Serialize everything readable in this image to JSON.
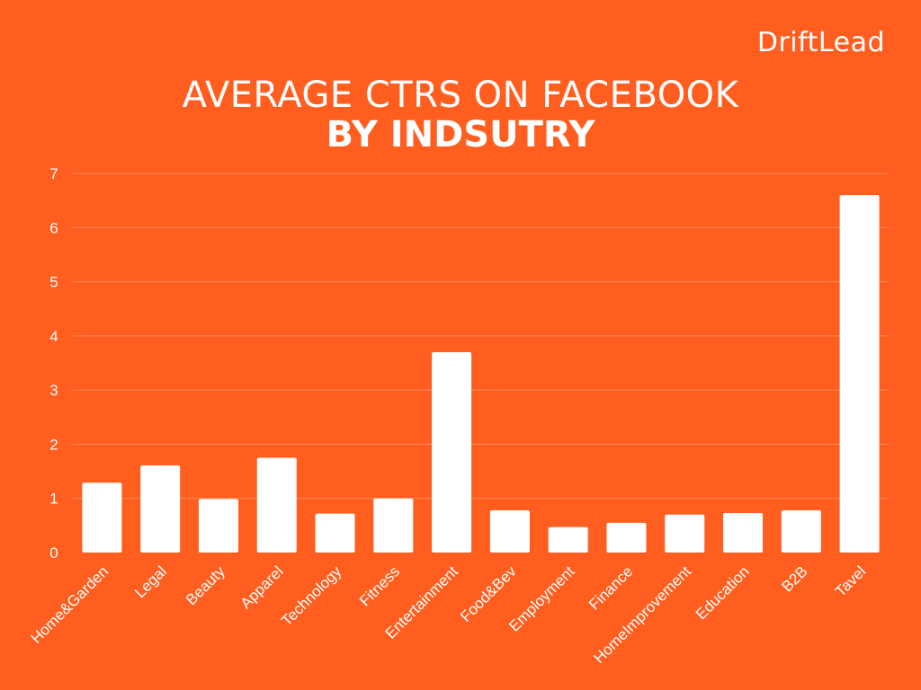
{
  "brand": {
    "name": "DriftLead"
  },
  "title": {
    "line1": "AVERAGE CTRS ON FACEBOOK",
    "line2": "BY INDSUTRY"
  },
  "colors": {
    "background": "#FF5E1F",
    "bar": "#FFFFFF",
    "gridline": "#FF8A5C",
    "text": "#FFFFFF"
  },
  "chart_data": {
    "type": "bar",
    "title": "AVERAGE CTRS ON FACEBOOK BY INDSUTRY",
    "xlabel": "",
    "ylabel": "",
    "ylim": [
      0,
      7
    ],
    "yticks": [
      0,
      1,
      2,
      3,
      4,
      5,
      6,
      7
    ],
    "grid": true,
    "categories": [
      "Home&Garden",
      "Legal",
      "Beauty",
      "Apparel",
      "Technology",
      "Fitness",
      "Entertainment",
      "Food&Bev",
      "Employment",
      "Finance",
      "HomeImprovement",
      "Education",
      "B2B",
      "Tavel"
    ],
    "values": [
      1.29,
      1.61,
      0.99,
      1.75,
      0.72,
      1.0,
      3.7,
      0.78,
      0.47,
      0.55,
      0.7,
      0.73,
      0.78,
      6.6
    ]
  }
}
